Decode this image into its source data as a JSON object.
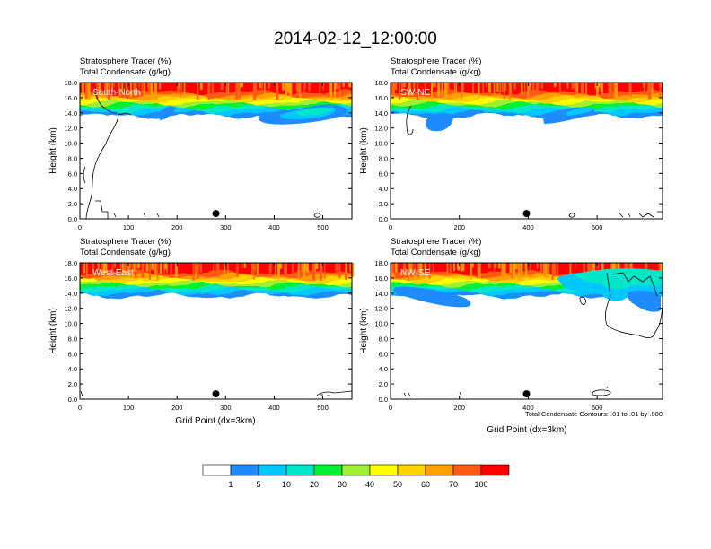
{
  "title": "2014-02-12_12:00:00",
  "colors": {
    "levels": [
      "#ffffff",
      "#1e8cff",
      "#00c8ff",
      "#00e6c8",
      "#00f032",
      "#a0f032",
      "#ffff00",
      "#ffd200",
      "#ffa000",
      "#ff5a14",
      "#ff0000"
    ],
    "boundary": "#000000",
    "marker": "#000000"
  },
  "colorbar": {
    "labels": [
      "1",
      "5",
      "10",
      "20",
      "30",
      "40",
      "50",
      "60",
      "70",
      "100"
    ]
  },
  "chart_data": [
    {
      "type": "heatmap",
      "panel": "top-left",
      "title_line1": "Stratosphere Tracer   (%)",
      "title_line2": "Total Condensate   (g/kg)",
      "cross_section": "South-North",
      "ylabel": "Height (km)",
      "xlabel": "",
      "xlim": [
        0,
        560
      ],
      "ylim": [
        0,
        18
      ],
      "xticks": [
        "0",
        "100",
        "200",
        "300",
        "400",
        "500"
      ],
      "yticks": [
        "0.0",
        "2.0",
        "4.0",
        "6.0",
        "8.0",
        "10.0",
        "12.0",
        "14.0",
        "16.0",
        "18.0"
      ],
      "marker_x": 280,
      "note": ""
    },
    {
      "type": "heatmap",
      "panel": "top-right",
      "title_line1": "Stratosphere Tracer   (%)",
      "title_line2": "Total Condensate   (g/kg)",
      "cross_section": "SW-NE",
      "ylabel": "Height (km)",
      "xlabel": "",
      "xlim": [
        0,
        790
      ],
      "ylim": [
        0,
        18
      ],
      "xticks": [
        "0",
        "200",
        "400",
        "600"
      ],
      "yticks": [
        "0.0",
        "2.0",
        "4.0",
        "6.0",
        "8.0",
        "10.0",
        "12.0",
        "14.0",
        "16.0",
        "18.0"
      ],
      "marker_x": 395,
      "note": ""
    },
    {
      "type": "heatmap",
      "panel": "bottom-left",
      "title_line1": "Stratosphere Tracer   (%)",
      "title_line2": "Total Condensate   (g/kg)",
      "cross_section": "West-East",
      "ylabel": "Height (km)",
      "xlabel": "Grid Point (dx=3km)",
      "xlim": [
        0,
        560
      ],
      "ylim": [
        0,
        18
      ],
      "xticks": [
        "0",
        "100",
        "200",
        "300",
        "400",
        "500"
      ],
      "yticks": [
        "0.0",
        "2.0",
        "4.0",
        "6.0",
        "8.0",
        "10.0",
        "12.0",
        "14.0",
        "16.0",
        "18.0"
      ],
      "marker_x": 280,
      "note": ""
    },
    {
      "type": "heatmap",
      "panel": "bottom-right",
      "title_line1": "Stratosphere Tracer   (%)",
      "title_line2": "Total Condensate   (g/kg)",
      "cross_section": "NW-SE",
      "ylabel": "Height (km)",
      "xlabel": "Grid Point (dx=3km)",
      "xlim": [
        0,
        790
      ],
      "ylim": [
        0,
        18
      ],
      "xticks": [
        "0",
        "200",
        "400",
        "600"
      ],
      "yticks": [
        "0.0",
        "2.0",
        "4.0",
        "6.0",
        "8.0",
        "10.0",
        "12.0",
        "14.0",
        "16.0",
        "18.0"
      ],
      "marker_x": 395,
      "note": "Total Condensate Contours: .01 to .01 by .000"
    }
  ]
}
